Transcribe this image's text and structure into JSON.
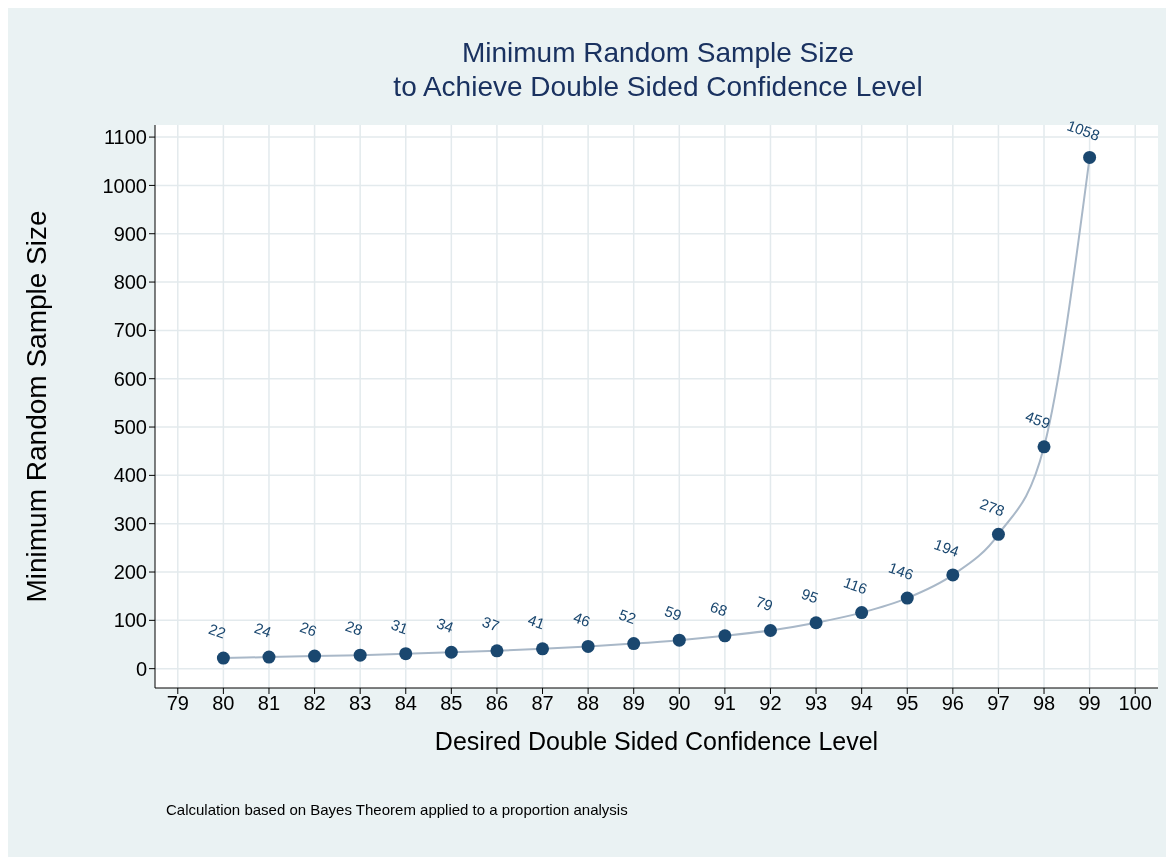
{
  "chart_data": {
    "type": "line",
    "title": "Minimum Random Sample Size\nto Achieve Double Sided Confidence Level",
    "xlabel": "Desired Double Sided Confidence Level",
    "ylabel": "Minimum Random Sample Size",
    "x": [
      80,
      81,
      82,
      83,
      84,
      85,
      86,
      87,
      88,
      89,
      90,
      91,
      92,
      93,
      94,
      95,
      96,
      97,
      98,
      99
    ],
    "series": [
      {
        "color": "#a9b8c8",
        "values": [
          22,
          24,
          26,
          28,
          31,
          34,
          37,
          41,
          46,
          52,
          59,
          68,
          79,
          95,
          116,
          146,
          194,
          278,
          459,
          1058
        ]
      }
    ],
    "xlim": [
      78.5,
      100.5
    ],
    "xticks": [
      79,
      80,
      81,
      82,
      83,
      84,
      85,
      86,
      87,
      88,
      89,
      90,
      91,
      92,
      93,
      94,
      95,
      96,
      97,
      98,
      99,
      100
    ],
    "ylim": [
      -40,
      1125
    ],
    "yticks": [
      0,
      100,
      200,
      300,
      400,
      500,
      600,
      700,
      800,
      900,
      1000,
      1100
    ],
    "grid": true,
    "marker": "circle",
    "line_style": "solid",
    "data_labels": true,
    "legend": false,
    "annotations": [
      "Calculation based on Bayes Theorem applied to a proportion analysis"
    ]
  }
}
